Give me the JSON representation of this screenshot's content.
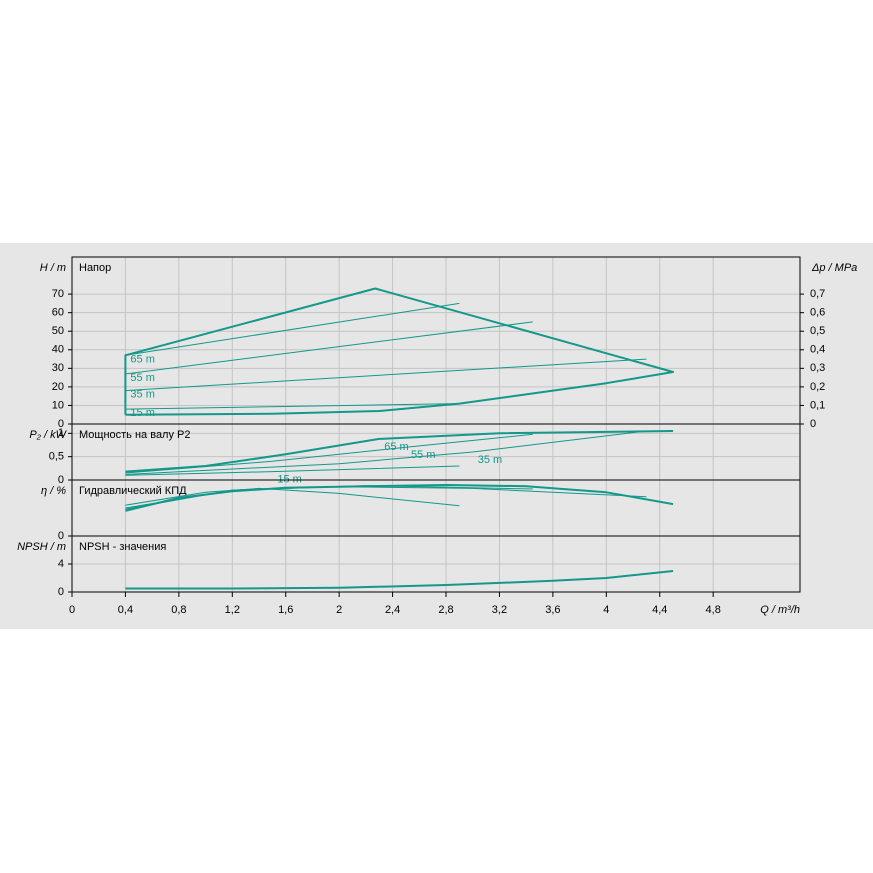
{
  "chart_data": [
    {
      "type": "line",
      "title": "Напор",
      "ylabel": "H / m",
      "y2label": "Δp / MPa",
      "ylim": [
        0,
        90
      ],
      "yticks": [
        0,
        10,
        20,
        30,
        40,
        50,
        60,
        70
      ],
      "y2lim": [
        0,
        0.9
      ],
      "y2ticks": [
        0,
        {
          "value": 0.1,
          "label": "0,1"
        },
        {
          "value": 0.2,
          "label": "0,2"
        },
        {
          "value": 0.3,
          "label": "0,3"
        },
        {
          "value": 0.4,
          "label": "0,4"
        },
        {
          "value": 0.5,
          "label": "0,5"
        },
        {
          "value": 0.6,
          "label": "0,6"
        },
        {
          "value": 0.7,
          "label": "0,7"
        }
      ],
      "color": "#13988a",
      "series": [
        {
          "x": [
            0.4,
            0.4,
            2.27,
            4.5,
            4.0,
            3.5,
            2.9,
            2.3,
            1.5,
            0.4
          ],
          "values": [
            5,
            37,
            73,
            28,
            22,
            17,
            11,
            7,
            5.5,
            5
          ],
          "width": 2
        },
        {
          "name": "65 m",
          "x": [
            0.4,
            2.9
          ],
          "values": [
            37,
            65
          ],
          "width": 1
        },
        {
          "name": "55 m",
          "x": [
            0.4,
            3.45
          ],
          "values": [
            27,
            55
          ],
          "width": 1
        },
        {
          "name": "35 m",
          "x": [
            0.4,
            4.3
          ],
          "values": [
            18,
            35
          ],
          "width": 1
        },
        {
          "name": "15 m",
          "x": [
            0.4,
            2.9
          ],
          "values": [
            8,
            11
          ],
          "width": 1
        }
      ]
    },
    {
      "type": "line",
      "title": "Мощность на валу P2",
      "ylabel": "P₂ / kW",
      "ylim": [
        0,
        1.2
      ],
      "yticks": [
        0,
        {
          "value": 0.5,
          "label": "0,5"
        },
        1
      ],
      "color": "#13988a",
      "series": [
        {
          "name": "65 m",
          "x": [
            0.4,
            1.0,
            1.6,
            2.3,
            3.2,
            4.5
          ],
          "values": [
            0.18,
            0.3,
            0.55,
            0.88,
            1.0,
            1.05
          ],
          "width": 2
        },
        {
          "name": "55 m",
          "x": [
            0.4,
            1.5,
            2.5,
            3.45
          ],
          "values": [
            0.15,
            0.4,
            0.7,
            0.98
          ],
          "width": 1
        },
        {
          "name": "35 m",
          "x": [
            0.4,
            2.0,
            3.0,
            4.3
          ],
          "values": [
            0.12,
            0.35,
            0.6,
            1.05
          ],
          "width": 1
        },
        {
          "name": "15 m",
          "x": [
            0.4,
            1.5,
            2.9
          ],
          "values": [
            0.1,
            0.18,
            0.3
          ],
          "width": 1
        }
      ]
    },
    {
      "type": "line",
      "title": "Гидравлический КПД",
      "ylabel": "η / %",
      "ylim": [
        0,
        100
      ],
      "yticks": [
        0
      ],
      "color": "#13988a",
      "series": [
        {
          "x": [
            0.4,
            0.8,
            1.2,
            1.6,
            2.2,
            2.8,
            3.4,
            4.0,
            4.5
          ],
          "values": [
            45,
            68,
            80,
            86,
            89,
            91,
            89,
            78,
            57
          ],
          "width": 2
        },
        {
          "x": [
            0.4,
            1.2,
            2.2,
            3.45
          ],
          "values": [
            48,
            82,
            90,
            84
          ],
          "width": 1
        },
        {
          "x": [
            0.4,
            1.2,
            2.0,
            3.0,
            4.3
          ],
          "values": [
            50,
            82,
            88,
            85,
            70
          ],
          "width": 1
        },
        {
          "x": [
            0.4,
            1.0,
            1.4,
            2.0,
            2.9
          ],
          "values": [
            55,
            78,
            85,
            76,
            54
          ],
          "width": 1
        }
      ]
    },
    {
      "type": "line",
      "title": "NPSH - значения",
      "ylabel": "NPSH / m",
      "xlabel": "Q / m³/h",
      "ylim": [
        0,
        8
      ],
      "yticks": [
        0,
        4
      ],
      "xlim": [
        0,
        5.45
      ],
      "xticks": [
        0,
        {
          "value": 0.4,
          "label": "0,4"
        },
        {
          "value": 0.8,
          "label": "0,8"
        },
        {
          "value": 1.2,
          "label": "1,2"
        },
        {
          "value": 1.6,
          "label": "1,6"
        },
        2,
        {
          "value": 2.4,
          "label": "2,4"
        },
        {
          "value": 2.8,
          "label": "2,8"
        },
        {
          "value": 3.2,
          "label": "3,2"
        },
        {
          "value": 3.6,
          "label": "3,6"
        },
        4,
        {
          "value": 4.4,
          "label": "4,4"
        },
        {
          "value": 4.8,
          "label": "4,8"
        }
      ],
      "color": "#13988a",
      "series": [
        {
          "x": [
            0.4,
            1.2,
            2.0,
            2.8,
            3.6,
            4.0,
            4.5
          ],
          "values": [
            0.5,
            0.5,
            0.6,
            1,
            1.6,
            2,
            3
          ],
          "width": 2
        }
      ]
    }
  ]
}
